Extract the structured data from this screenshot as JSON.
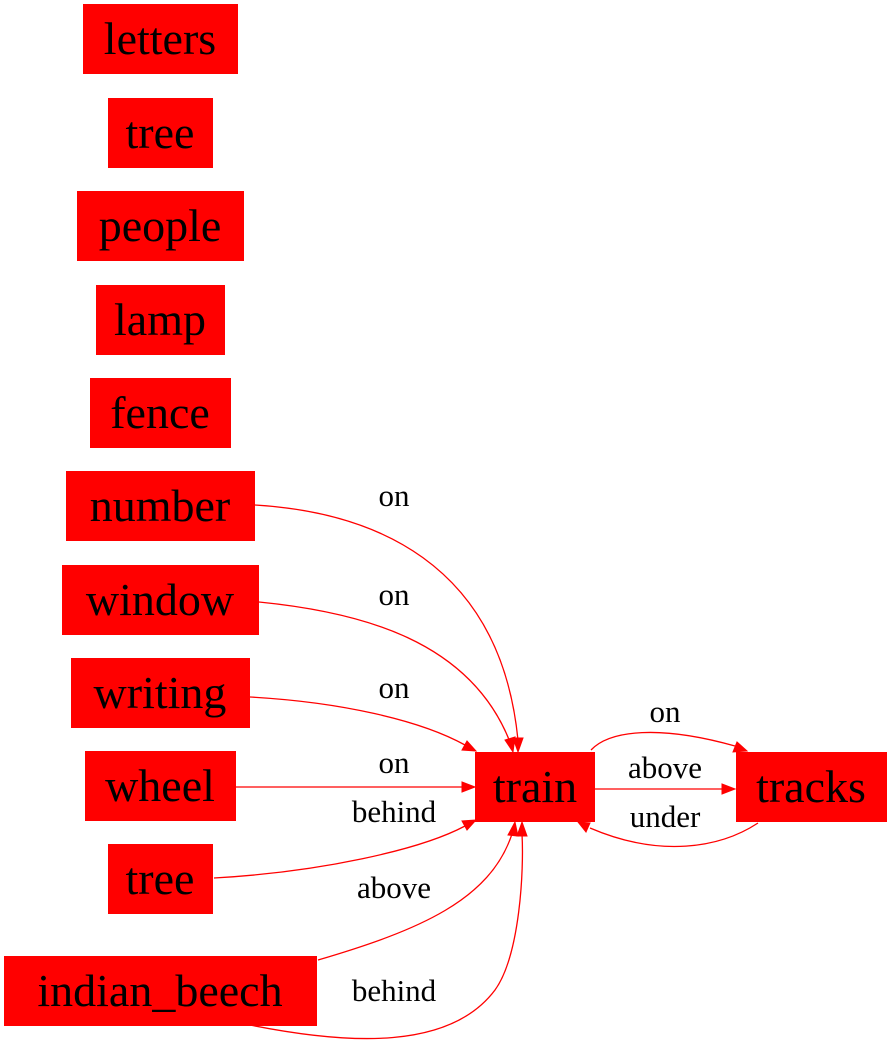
{
  "colors": {
    "node_fill": "#ff0000",
    "edge": "#ff0000",
    "text": "#000000",
    "background": "#ffffff"
  },
  "nodes": {
    "letters": "letters",
    "tree_1": "tree",
    "people": "people",
    "lamp": "lamp",
    "fence": "fence",
    "number": "number",
    "window": "window",
    "writing": "writing",
    "wheel": "wheel",
    "tree_2": "tree",
    "indian_beech": "indian_beech",
    "train": "train",
    "tracks": "tracks"
  },
  "edges": [
    {
      "from": "number",
      "to": "train",
      "label": "on"
    },
    {
      "from": "window",
      "to": "train",
      "label": "on"
    },
    {
      "from": "writing",
      "to": "train",
      "label": "on"
    },
    {
      "from": "wheel",
      "to": "train",
      "label": "on"
    },
    {
      "from": "tree_2",
      "to": "train",
      "label": "behind"
    },
    {
      "from": "indian_beech",
      "to": "train",
      "label": "above"
    },
    {
      "from": "indian_beech",
      "to": "train",
      "label": "behind"
    },
    {
      "from": "train",
      "to": "tracks",
      "label": "on"
    },
    {
      "from": "train",
      "to": "tracks",
      "label": "above"
    },
    {
      "from": "tracks",
      "to": "train",
      "label": "under"
    }
  ]
}
